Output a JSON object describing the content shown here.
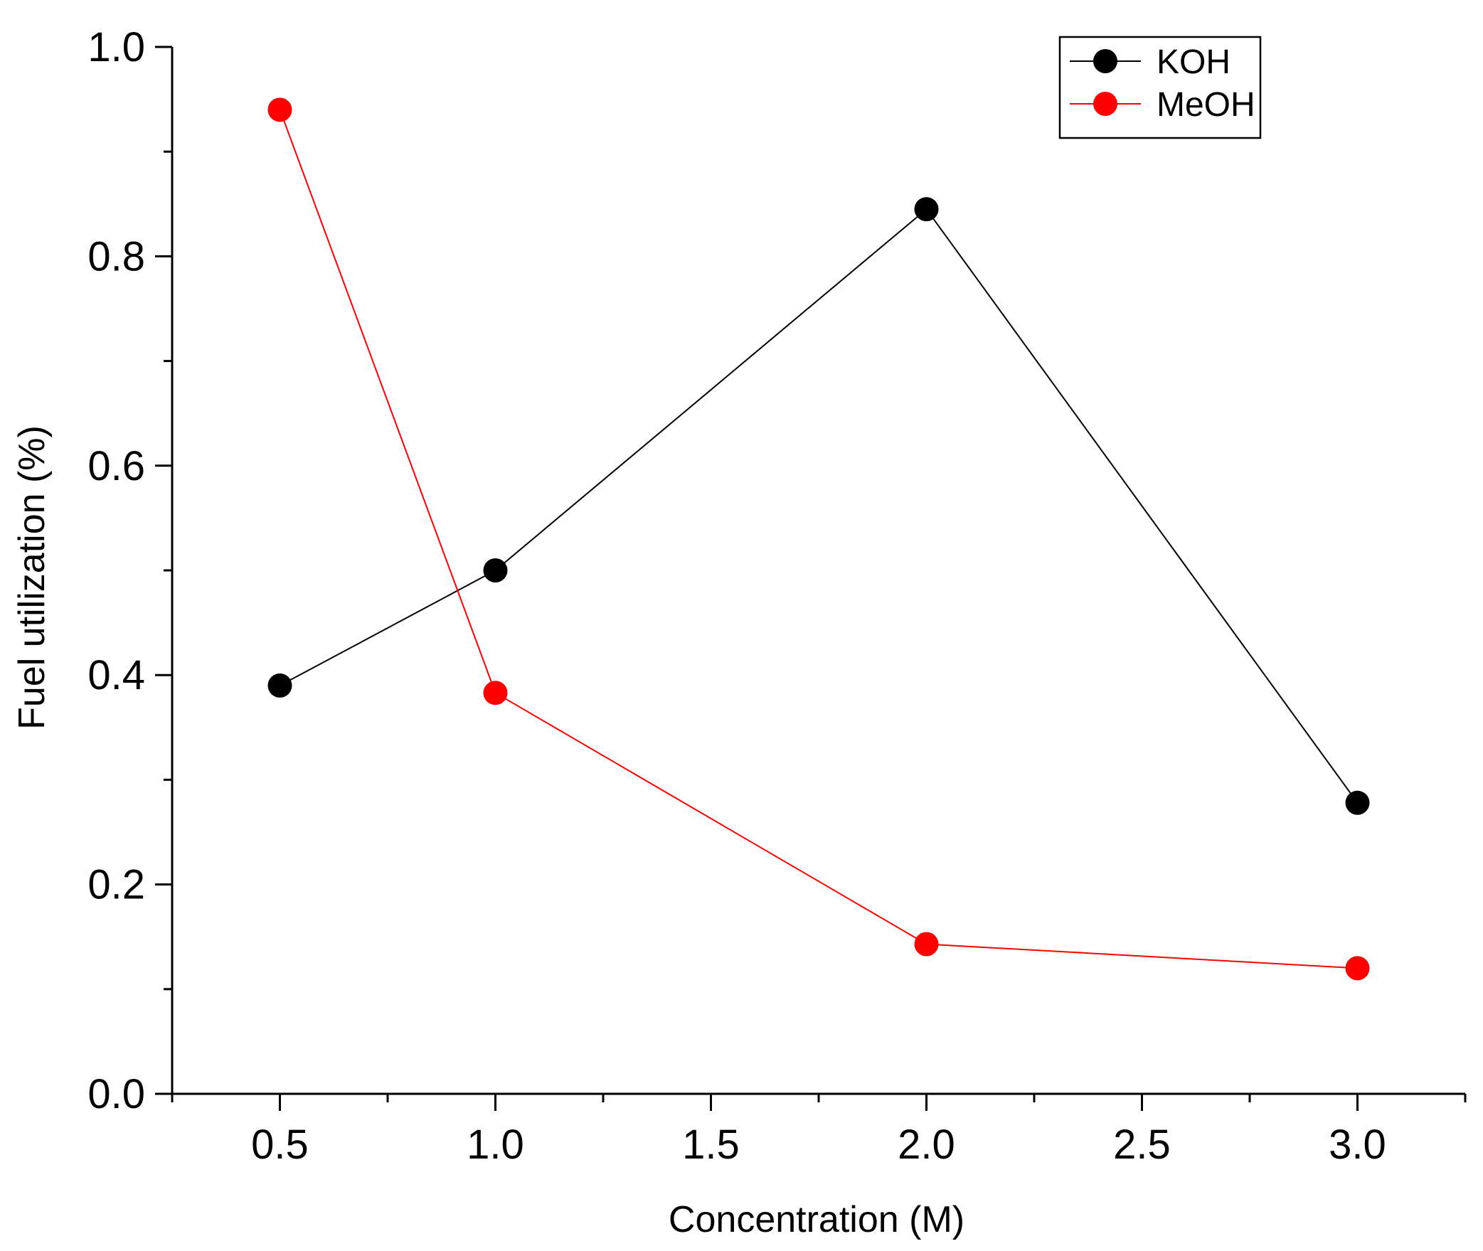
{
  "chart_data": {
    "type": "line",
    "title": "",
    "xlabel": "Concentration (M)",
    "ylabel": "Fuel utilization (%)",
    "xlim": [
      0.25,
      3.25
    ],
    "ylim": [
      0.0,
      1.0
    ],
    "x_ticks": [
      0.5,
      1.0,
      1.5,
      2.0,
      2.5,
      3.0
    ],
    "x_tick_labels": [
      "0.5",
      "1.0",
      "1.5",
      "2.0",
      "2.5",
      "3.0"
    ],
    "y_ticks": [
      0.0,
      0.2,
      0.4,
      0.6,
      0.8,
      1.0
    ],
    "y_tick_labels": [
      "0.0",
      "0.2",
      "0.4",
      "0.6",
      "0.8",
      "1.0"
    ],
    "grid": false,
    "legend_position": "top-right",
    "series": [
      {
        "name": "KOH",
        "color": "#000000",
        "marker": "circle",
        "x": [
          0.5,
          1.0,
          2.0,
          3.0
        ],
        "values": [
          0.39,
          0.5,
          0.845,
          0.278
        ]
      },
      {
        "name": "MeOH",
        "color": "#ff0000",
        "marker": "circle",
        "x": [
          0.5,
          1.0,
          2.0,
          3.0
        ],
        "values": [
          0.94,
          0.383,
          0.143,
          0.12
        ]
      }
    ]
  }
}
